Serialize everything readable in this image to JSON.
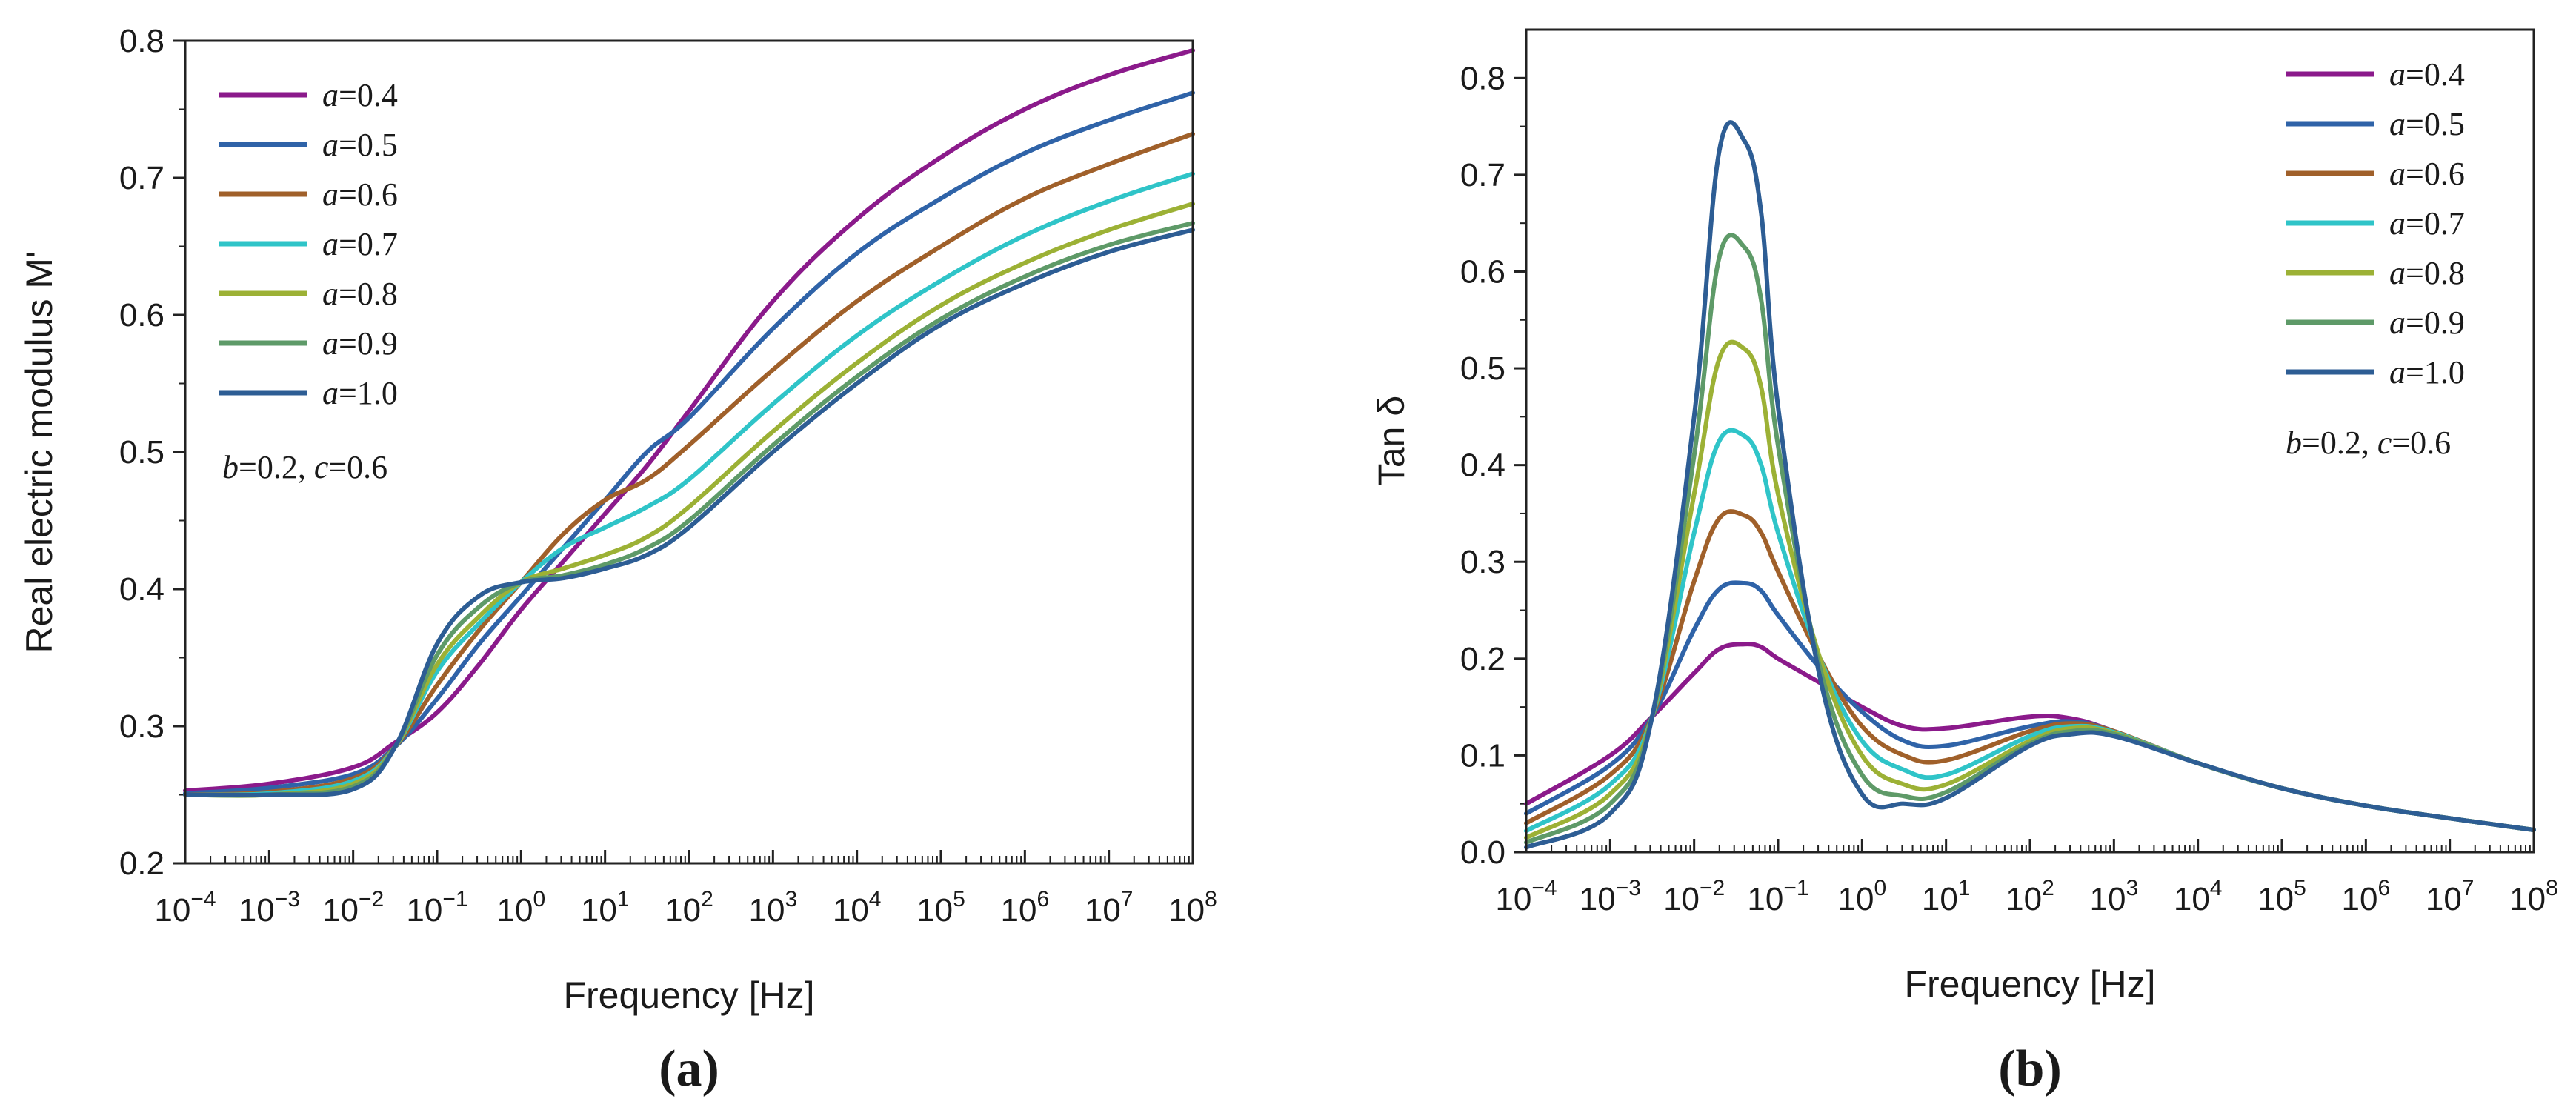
{
  "chart_data": [
    {
      "type": "line",
      "panel": "a",
      "caption": "(a)",
      "xlabel": "Frequency [Hz]",
      "ylabel": "Real electric modulus M'",
      "xscale": "log",
      "xlim": [
        -4,
        8
      ],
      "ylim": [
        0.2,
        0.8
      ],
      "xticks": [
        {
          "base": "10",
          "exp": "−4"
        },
        {
          "base": "10",
          "exp": "−3"
        },
        {
          "base": "10",
          "exp": "−2"
        },
        {
          "base": "10",
          "exp": "−1"
        },
        {
          "base": "10",
          "exp": "0"
        },
        {
          "base": "10",
          "exp": "1"
        },
        {
          "base": "10",
          "exp": "2"
        },
        {
          "base": "10",
          "exp": "3"
        },
        {
          "base": "10",
          "exp": "4"
        },
        {
          "base": "10",
          "exp": "5"
        },
        {
          "base": "10",
          "exp": "6"
        },
        {
          "base": "10",
          "exp": "7"
        },
        {
          "base": "10",
          "exp": "8"
        }
      ],
      "yticks": [
        "0.2",
        "0.3",
        "0.4",
        "0.5",
        "0.6",
        "0.7",
        "0.8"
      ],
      "ytick_values": [
        0.2,
        0.3,
        0.4,
        0.5,
        0.6,
        0.7,
        0.8
      ],
      "legend_position": "top-left",
      "annotation": "b=0.2, c=0.6",
      "x": [
        -4,
        -3,
        -2,
        -1.5,
        -1,
        -0.5,
        0,
        0.5,
        1,
        1.5,
        2,
        3,
        4,
        5,
        6,
        7,
        8
      ],
      "series": [
        {
          "name": "a=0.4",
          "color": "#8B1A8B",
          "values": [
            0.253,
            0.258,
            0.27,
            0.288,
            0.31,
            0.345,
            0.385,
            0.42,
            0.455,
            0.49,
            0.53,
            0.61,
            0.67,
            0.715,
            0.75,
            0.775,
            0.793
          ]
        },
        {
          "name": "a=0.5",
          "color": "#2F63A8",
          "values": [
            0.251,
            0.255,
            0.265,
            0.285,
            0.32,
            0.36,
            0.395,
            0.43,
            0.465,
            0.5,
            0.525,
            0.59,
            0.645,
            0.685,
            0.718,
            0.742,
            0.762
          ]
        },
        {
          "name": "a=0.6",
          "color": "#A0602A",
          "values": [
            0.25,
            0.252,
            0.262,
            0.285,
            0.33,
            0.37,
            0.405,
            0.44,
            0.465,
            0.48,
            0.505,
            0.56,
            0.61,
            0.65,
            0.685,
            0.71,
            0.732
          ]
        },
        {
          "name": "a=0.7",
          "color": "#2FC4C8",
          "values": [
            0.25,
            0.251,
            0.26,
            0.285,
            0.34,
            0.375,
            0.405,
            0.43,
            0.445,
            0.46,
            0.48,
            0.535,
            0.585,
            0.625,
            0.658,
            0.683,
            0.703
          ]
        },
        {
          "name": "a=0.8",
          "color": "#9CB135",
          "values": [
            0.25,
            0.25,
            0.258,
            0.285,
            0.345,
            0.38,
            0.405,
            0.415,
            0.425,
            0.438,
            0.46,
            0.515,
            0.565,
            0.607,
            0.638,
            0.662,
            0.681
          ]
        },
        {
          "name": "a=0.9",
          "color": "#5E9A68",
          "values": [
            0.25,
            0.25,
            0.256,
            0.285,
            0.352,
            0.387,
            0.405,
            0.41,
            0.418,
            0.43,
            0.45,
            0.505,
            0.555,
            0.597,
            0.628,
            0.651,
            0.667
          ]
        },
        {
          "name": "a=1.0",
          "color": "#2D5D94",
          "values": [
            0.25,
            0.25,
            0.254,
            0.285,
            0.36,
            0.395,
            0.405,
            0.408,
            0.415,
            0.425,
            0.445,
            0.5,
            0.55,
            0.593,
            0.623,
            0.646,
            0.662
          ]
        }
      ]
    },
    {
      "type": "line",
      "panel": "b",
      "caption": "(b)",
      "xlabel": "Frequency [Hz]",
      "ylabel": "Tan δ",
      "xscale": "log",
      "xlim": [
        -4,
        8
      ],
      "ylim": [
        0,
        0.85
      ],
      "xticks": [
        {
          "base": "10",
          "exp": "−4"
        },
        {
          "base": "10",
          "exp": "−3"
        },
        {
          "base": "10",
          "exp": "−2"
        },
        {
          "base": "10",
          "exp": "−1"
        },
        {
          "base": "10",
          "exp": "0"
        },
        {
          "base": "10",
          "exp": "1"
        },
        {
          "base": "10",
          "exp": "2"
        },
        {
          "base": "10",
          "exp": "3"
        },
        {
          "base": "10",
          "exp": "4"
        },
        {
          "base": "10",
          "exp": "5"
        },
        {
          "base": "10",
          "exp": "6"
        },
        {
          "base": "10",
          "exp": "7"
        },
        {
          "base": "10",
          "exp": "8"
        }
      ],
      "yticks": [
        "0.0",
        "0.1",
        "0.2",
        "0.3",
        "0.4",
        "0.5",
        "0.6",
        "0.7",
        "0.8"
      ],
      "ytick_values": [
        0,
        0.1,
        0.2,
        0.3,
        0.4,
        0.5,
        0.6,
        0.7,
        0.8
      ],
      "legend_position": "top-right",
      "annotation": "b=0.2, c=0.6",
      "x": [
        -4,
        -3,
        -2.5,
        -2,
        -1.7,
        -1.4,
        -1.2,
        -1,
        -0.5,
        0,
        0.5,
        1,
        2,
        2.5,
        3,
        4,
        5,
        6,
        7,
        8
      ],
      "series": [
        {
          "name": "a=0.4",
          "color": "#8B1A8B",
          "values": [
            0.05,
            0.1,
            0.14,
            0.185,
            0.21,
            0.215,
            0.212,
            0.2,
            0.175,
            0.15,
            0.13,
            0.128,
            0.14,
            0.138,
            0.125,
            0.092,
            0.066,
            0.048,
            0.035,
            0.023
          ]
        },
        {
          "name": "a=0.5",
          "color": "#2F63A8",
          "values": [
            0.04,
            0.09,
            0.14,
            0.23,
            0.272,
            0.278,
            0.27,
            0.245,
            0.19,
            0.145,
            0.115,
            0.11,
            0.13,
            0.135,
            0.125,
            0.092,
            0.066,
            0.048,
            0.035,
            0.023
          ]
        },
        {
          "name": "a=0.6",
          "color": "#A0602A",
          "values": [
            0.03,
            0.08,
            0.14,
            0.28,
            0.345,
            0.348,
            0.33,
            0.29,
            0.2,
            0.13,
            0.1,
            0.095,
            0.125,
            0.133,
            0.125,
            0.092,
            0.066,
            0.048,
            0.035,
            0.023
          ]
        },
        {
          "name": "a=0.7",
          "color": "#2FC4C8",
          "values": [
            0.022,
            0.07,
            0.14,
            0.33,
            0.425,
            0.43,
            0.4,
            0.33,
            0.2,
            0.115,
            0.085,
            0.08,
            0.12,
            0.13,
            0.124,
            0.092,
            0.066,
            0.048,
            0.035,
            0.023
          ]
        },
        {
          "name": "a=0.8",
          "color": "#9CB135",
          "values": [
            0.015,
            0.06,
            0.14,
            0.37,
            0.51,
            0.52,
            0.48,
            0.37,
            0.2,
            0.1,
            0.07,
            0.07,
            0.115,
            0.128,
            0.123,
            0.092,
            0.066,
            0.048,
            0.035,
            0.023
          ]
        },
        {
          "name": "a=0.9",
          "color": "#5E9A68",
          "values": [
            0.01,
            0.05,
            0.14,
            0.41,
            0.615,
            0.625,
            0.57,
            0.42,
            0.19,
            0.08,
            0.058,
            0.062,
            0.112,
            0.125,
            0.122,
            0.092,
            0.066,
            0.048,
            0.035,
            0.023
          ]
        },
        {
          "name": "a=1.0",
          "color": "#2D5D94",
          "values": [
            0.005,
            0.04,
            0.14,
            0.45,
            0.725,
            0.735,
            0.66,
            0.46,
            0.18,
            0.06,
            0.05,
            0.056,
            0.11,
            0.122,
            0.12,
            0.092,
            0.066,
            0.048,
            0.035,
            0.023
          ]
        }
      ]
    }
  ]
}
